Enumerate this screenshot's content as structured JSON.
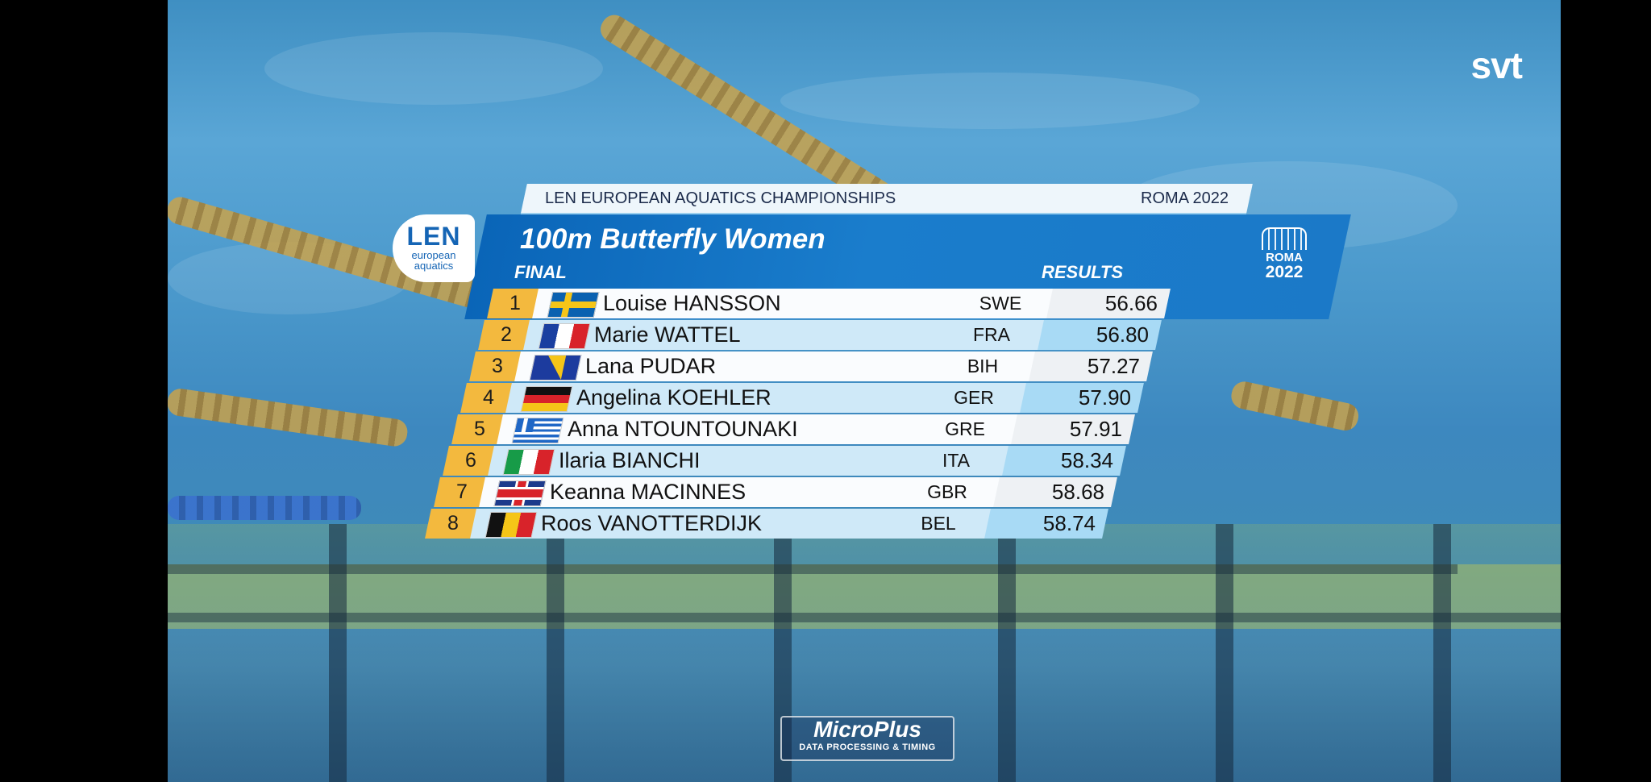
{
  "broadcaster": {
    "logo_text": "svt"
  },
  "timing_sponsor": {
    "name": "MicroPlus",
    "tagline": "DATA PROCESSING & TIMING"
  },
  "header": {
    "championship": "LEN EUROPEAN AQUATICS CHAMPIONSHIPS",
    "location": "ROMA 2022",
    "len_logo": {
      "mark": "LEN",
      "line1": "european",
      "line2": "aquatics"
    },
    "roma_logo": {
      "line1": "ROMA",
      "line2": "2022"
    }
  },
  "event": {
    "title": "100m Butterfly Women",
    "round": "FINAL",
    "results_label": "RESULTS"
  },
  "results": [
    {
      "rank": "1",
      "name": "Louise HANSSON",
      "nation": "SWE",
      "time": "56.66",
      "flag": "sweden-flag-icon"
    },
    {
      "rank": "2",
      "name": "Marie WATTEL",
      "nation": "FRA",
      "time": "56.80",
      "flag": "france-flag-icon"
    },
    {
      "rank": "3",
      "name": "Lana PUDAR",
      "nation": "BIH",
      "time": "57.27",
      "flag": "bosnia-flag-icon"
    },
    {
      "rank": "4",
      "name": "Angelina KOEHLER",
      "nation": "GER",
      "time": "57.90",
      "flag": "germany-flag-icon"
    },
    {
      "rank": "5",
      "name": "Anna NTOUNTOUNAKI",
      "nation": "GRE",
      "time": "57.91",
      "flag": "greece-flag-icon"
    },
    {
      "rank": "6",
      "name": "Ilaria BIANCHI",
      "nation": "ITA",
      "time": "58.34",
      "flag": "italy-flag-icon"
    },
    {
      "rank": "7",
      "name": "Keanna MACINNES",
      "nation": "GBR",
      "time": "58.68",
      "flag": "uk-flag-icon"
    },
    {
      "rank": "8",
      "name": "Roos VANOTTERDIJK",
      "nation": "BEL",
      "time": "58.74",
      "flag": "belgium-flag-icon"
    }
  ],
  "colors": {
    "rank_cell": "#f3b93e",
    "title_panel": "#1a7dcc",
    "row_light": "#fafcfe",
    "row_blue": "#cfe9f8"
  }
}
